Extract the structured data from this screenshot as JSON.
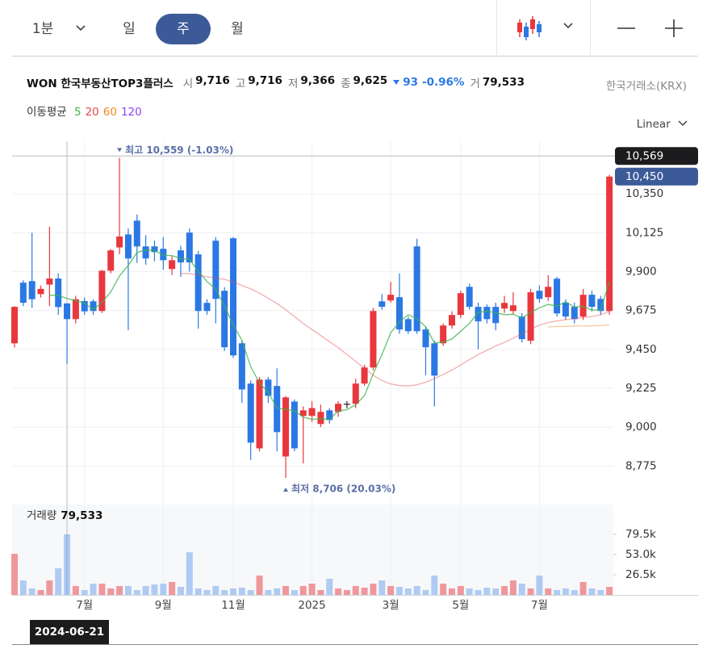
{
  "toolbar": {
    "intervals": [
      "1분",
      "일",
      "주",
      "월"
    ],
    "active": 2
  },
  "header": {
    "name": "WON 한국부동산TOP3플러스",
    "quotes": [
      {
        "label": "시",
        "value": "9,716"
      },
      {
        "label": "고",
        "value": "9,716"
      },
      {
        "label": "저",
        "value": "9,366"
      },
      {
        "label": "종",
        "value": "9,625"
      }
    ],
    "change": "93",
    "change_rate": "-0.96%",
    "volume_label": "거",
    "volume": "79,533",
    "exchange": "한국거래소(KRX)"
  },
  "moving_average_label": "이동평균",
  "scale_mode": "Linear",
  "chart_data": [
    {
      "type": "candlestick",
      "categories": [
        null,
        null,
        null,
        null,
        null,
        null,
        null,
        null,
        "7월",
        null,
        null,
        null,
        null,
        null,
        null,
        null,
        null,
        "9월",
        null,
        null,
        null,
        null,
        null,
        null,
        null,
        "11월",
        null,
        null,
        null,
        null,
        null,
        null,
        null,
        null,
        "2025",
        null,
        null,
        null,
        null,
        null,
        null,
        null,
        null,
        "3월",
        null,
        null,
        null,
        null,
        null,
        null,
        null,
        "5월",
        null,
        null,
        null,
        null,
        null,
        null,
        null,
        null,
        "7월",
        null,
        null,
        null,
        null,
        null,
        null,
        null,
        null
      ],
      "open": [
        9485,
        9836,
        9845,
        9770,
        9825,
        9860,
        9716,
        9625,
        9730,
        9728,
        9672,
        9905,
        10040,
        10115,
        10195,
        10046,
        10046,
        10032,
        9915,
        10023,
        10126,
        10000,
        9719,
        10079,
        9789,
        10093,
        9485,
        9252,
        8877,
        9275,
        9238,
        8830,
        9148,
        9065,
        9065,
        9018,
        9097,
        9088,
        9135,
        9135,
        9252,
        9345,
        9728,
        9733,
        9752,
        9625,
        10046,
        9565,
        9485,
        9485,
        9588,
        9649,
        9812,
        9696,
        9696,
        9696,
        9686,
        9672,
        9640,
        9500,
        9789,
        9752,
        9859,
        9719,
        9696,
        9640,
        9766,
        9742,
        9672
      ],
      "high": [
        9700,
        9850,
        10125,
        9820,
        10160,
        9890,
        9716,
        9760,
        9750,
        9740,
        9910,
        10030,
        10559,
        10150,
        10230,
        10110,
        10080,
        10100,
        9990,
        10050,
        10150,
        10020,
        9740,
        10100,
        9810,
        10100,
        9500,
        9270,
        9290,
        9290,
        9340,
        9180,
        9160,
        9120,
        9150,
        9130,
        9110,
        9150,
        9150,
        9280,
        9360,
        9690,
        9770,
        9840,
        9890,
        9640,
        10090,
        9580,
        9500,
        9600,
        9670,
        9790,
        9830,
        9720,
        9710,
        9720,
        9760,
        9780,
        9660,
        9800,
        9820,
        9880,
        9870,
        9740,
        9720,
        9800,
        9790,
        9760,
        10460
      ],
      "low": [
        9460,
        9700,
        9690,
        9750,
        9700,
        9650,
        9366,
        9600,
        9650,
        9650,
        9660,
        9890,
        10000,
        9560,
        9950,
        9940,
        9960,
        9910,
        9880,
        9870,
        9900,
        9570,
        9650,
        9600,
        9440,
        9400,
        9140,
        8810,
        8860,
        9140,
        8860,
        8706,
        8860,
        8790,
        9030,
        9000,
        9020,
        9060,
        9110,
        9110,
        9240,
        9330,
        9680,
        9720,
        9540,
        9540,
        9540,
        9300,
        9120,
        9470,
        9570,
        9630,
        9680,
        9450,
        9600,
        9560,
        9660,
        9650,
        9490,
        9480,
        9720,
        9730,
        9640,
        9620,
        9600,
        9620,
        9670,
        9650,
        9650
      ],
      "close": [
        9696,
        9720,
        9740,
        9800,
        9860,
        9695,
        9625,
        9740,
        9670,
        9672,
        9905,
        10023,
        10103,
        9976,
        10046,
        9976,
        10013,
        9966,
        9966,
        9953,
        9953,
        9672,
        9672,
        9742,
        9462,
        9415,
        9218,
        8910,
        9275,
        9181,
        8971,
        9172,
        8877,
        9097,
        9110,
        9088,
        9041,
        9135,
        9135,
        9252,
        9345,
        9672,
        9696,
        9766,
        9565,
        9555,
        9555,
        9462,
        9298,
        9588,
        9649,
        9775,
        9696,
        9612,
        9625,
        9602,
        9719,
        9705,
        9509,
        9780,
        9742,
        9812,
        9658,
        9640,
        9625,
        9766,
        9696,
        9672,
        10450
      ],
      "up_color": "#e8373d",
      "down_color": "#2b78e4",
      "flat_color": "#222222",
      "series": [
        {
          "name": "5",
          "color": "#3cb44b",
          "values": [
            null,
            null,
            null,
            null,
            9763,
            9763,
            9744,
            9732,
            9718,
            9680,
            9722,
            9782,
            9875,
            9936,
            10011,
            10025,
            10023,
            9995,
            9993,
            9975,
            9970,
            9902,
            9843,
            9798,
            9700,
            9593,
            9502,
            9349,
            9256,
            9200,
            9111,
            9102,
            9095,
            9058,
            9045,
            9049,
            9043,
            9094,
            9101,
            9130,
            9182,
            9308,
            9420,
            9546,
            9609,
            9651,
            9627,
            9581,
            9487,
            9492,
            9510,
            9554,
            9601,
            9664,
            9671,
            9662,
            9651,
            9653,
            9632,
            9663,
            9691,
            9710,
            9700,
            9726,
            9695,
            9700,
            9677,
            9680,
            9842
          ]
        },
        {
          "name": "20",
          "color": "#e8474c",
          "values": [
            null,
            null,
            null,
            null,
            null,
            null,
            null,
            null,
            null,
            null,
            null,
            null,
            null,
            null,
            null,
            null,
            null,
            null,
            null,
            9890,
            9888,
            9880,
            9870,
            9862,
            9855,
            9840,
            9820,
            9800,
            9775,
            9745,
            9715,
            9680,
            9640,
            9600,
            9565,
            9530,
            9495,
            9460,
            9420,
            9380,
            9340,
            9300,
            9270,
            9250,
            9240,
            9238,
            9245,
            9260,
            9280,
            9305,
            9330,
            9360,
            9390,
            9420,
            9445,
            9470,
            9490,
            9515,
            9540,
            9565,
            9590,
            9605,
            9615,
            9622,
            9628,
            9635,
            9640,
            9650,
            9670
          ]
        },
        {
          "name": "60",
          "color": "#f08a24",
          "values": [
            null,
            null,
            null,
            null,
            null,
            null,
            null,
            null,
            null,
            null,
            null,
            null,
            null,
            null,
            null,
            null,
            null,
            null,
            null,
            null,
            null,
            null,
            null,
            null,
            null,
            null,
            null,
            null,
            null,
            null,
            null,
            null,
            null,
            null,
            null,
            null,
            null,
            null,
            null,
            null,
            null,
            null,
            null,
            null,
            null,
            null,
            null,
            null,
            null,
            null,
            null,
            null,
            null,
            null,
            null,
            null,
            null,
            null,
            null,
            null,
            null,
            9580,
            9582,
            9583,
            9585,
            9585,
            9586,
            9588,
            9592
          ]
        },
        {
          "name": "120",
          "color": "#8a3ffc",
          "values": [
            null,
            null,
            null,
            null,
            null,
            null,
            null,
            null,
            null,
            null,
            null,
            null,
            null,
            null,
            null,
            null,
            null,
            null,
            null,
            null,
            null,
            null,
            null,
            null,
            null,
            null,
            null,
            null,
            null,
            null,
            null,
            null,
            null,
            null,
            null,
            null,
            null,
            null,
            null,
            null,
            null,
            null,
            null,
            null,
            null,
            null,
            null,
            null,
            null,
            null,
            null,
            null,
            null,
            null,
            null,
            null,
            null,
            null,
            null,
            null,
            null,
            null,
            null,
            null,
            null,
            null,
            null,
            null,
            null
          ]
        }
      ],
      "ylim": [
        8580,
        10575
      ],
      "yticks": [
        {
          "value": 8775,
          "label": "8,775"
        },
        {
          "value": 9000,
          "label": "9,000"
        },
        {
          "value": 9225,
          "label": "9,225"
        },
        {
          "value": 9450,
          "label": "9,450"
        },
        {
          "value": 9675,
          "label": "9,675"
        },
        {
          "value": 9900,
          "label": "9,900"
        },
        {
          "value": 10125,
          "label": "10,125"
        },
        {
          "value": 10350,
          "label": "10,350"
        }
      ],
      "grid": true,
      "high_annotation": {
        "value": 10559,
        "label": "최고 10,559 (-1.03%)"
      },
      "low_annotation": {
        "value": 8706,
        "label": "최저 8,706 (20.03%)"
      },
      "last_price": {
        "value": 10450,
        "label": "10,450"
      },
      "cursor": {
        "date": "2024-06-21",
        "price": {
          "value": 10569,
          "label": "10,569"
        }
      }
    },
    {
      "type": "bar",
      "title": "거래량",
      "title_value": "79,533",
      "values": [
        54000,
        19000,
        8500,
        6400,
        19000,
        35000,
        79533,
        11700,
        6400,
        14800,
        14800,
        8500,
        11700,
        11700,
        6400,
        11700,
        13800,
        14800,
        17000,
        10600,
        56000,
        8500,
        6400,
        11700,
        6400,
        8500,
        9500,
        6400,
        25400,
        6400,
        8500,
        11700,
        6400,
        11700,
        14800,
        6400,
        21200,
        8500,
        6400,
        11700,
        9500,
        14800,
        19000,
        11700,
        10600,
        8500,
        11700,
        6400,
        25400,
        14800,
        8500,
        11700,
        8500,
        6400,
        9500,
        8500,
        11700,
        19000,
        14800,
        8500,
        25400,
        8500,
        6400,
        8500,
        6400,
        17000,
        8500,
        6400,
        10600
      ],
      "ylim": [
        0,
        117600
      ],
      "yticks": [
        {
          "value": 26500,
          "label": "26.5k"
        },
        {
          "value": 53000,
          "label": "53.0k"
        },
        {
          "value": 79500,
          "label": "79.5k"
        }
      ]
    }
  ]
}
